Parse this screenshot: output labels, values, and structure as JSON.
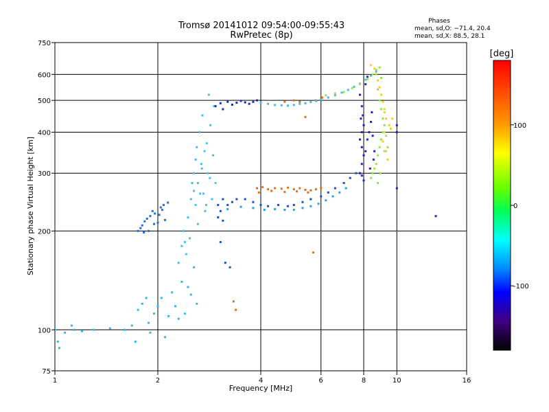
{
  "chart_data": {
    "type": "scatter",
    "title": "Tromsø 20141012 09:54:00-09:55:43",
    "subtitle": "RwPretec (8p)",
    "xlabel": "Frequency [MHz]",
    "ylabel": "Stationary phase Virtual Height [km]",
    "x_scale": "log",
    "y_scale": "log",
    "xlim": [
      1,
      16
    ],
    "ylim": [
      75,
      750
    ],
    "x_ticks": [
      1,
      2,
      4,
      6,
      8,
      10,
      16
    ],
    "y_ticks": [
      75,
      100,
      200,
      300,
      400,
      500,
      600,
      750
    ],
    "grid": true,
    "stats": {
      "heading": "Phases",
      "line_o": "mean, sd,O: −71.4, 20.4",
      "line_x": "mean, sd,X:  88.5, 28.1"
    },
    "colorbar": {
      "label": "[deg]",
      "min": -180,
      "max": 180,
      "ticks": [
        100,
        0,
        -100
      ],
      "colormap": "rainbow",
      "colors": [
        "#ff0000",
        "#ffff00",
        "#00ff00",
        "#00ffff",
        "#0000ff",
        "#000000"
      ]
    },
    "series": [
      {
        "color": "#30b8e8",
        "points": [
          [
            1.0,
            100
          ],
          [
            1.02,
            92
          ],
          [
            1.03,
            88
          ],
          [
            1.07,
            98
          ],
          [
            1.12,
            103
          ],
          [
            1.14,
            100
          ],
          [
            1.2,
            99
          ],
          [
            1.3,
            100
          ],
          [
            1.45,
            101
          ],
          [
            1.6,
            100
          ],
          [
            1.68,
            103
          ],
          [
            1.72,
            92
          ],
          [
            1.75,
            115
          ],
          [
            1.8,
            120
          ],
          [
            1.85,
            125
          ],
          [
            1.88,
            105
          ],
          [
            1.9,
            98
          ],
          [
            1.95,
            112
          ],
          [
            2.0,
            118
          ],
          [
            2.05,
            125
          ],
          [
            2.1,
            95
          ],
          [
            2.15,
            110
          ],
          [
            2.2,
            130
          ],
          [
            2.25,
            118
          ],
          [
            2.3,
            108
          ],
          [
            2.35,
            140
          ],
          [
            2.4,
            112
          ],
          [
            2.45,
            135
          ],
          [
            2.5,
            128
          ],
          [
            2.55,
            155
          ],
          [
            2.6,
            120
          ]
        ]
      },
      {
        "color": "#2070e0",
        "points": [
          [
            1.75,
            200
          ],
          [
            1.78,
            204
          ],
          [
            1.8,
            208
          ],
          [
            1.83,
            214
          ],
          [
            1.86,
            218
          ],
          [
            1.9,
            222
          ],
          [
            1.93,
            230
          ],
          [
            1.96,
            226
          ],
          [
            2.0,
            212
          ],
          [
            2.04,
            236
          ],
          [
            2.08,
            240
          ],
          [
            2.1,
            216
          ],
          [
            2.14,
            244
          ],
          [
            1.82,
            198
          ],
          [
            1.95,
            210
          ],
          [
            2.02,
            224
          ],
          [
            1.88,
            200
          ],
          [
            2.06,
            232
          ]
        ]
      },
      {
        "color": "#40c0f0",
        "points": [
          [
            2.3,
            160
          ],
          [
            2.35,
            180
          ],
          [
            2.38,
            200
          ],
          [
            2.42,
            170
          ],
          [
            2.45,
            220
          ],
          [
            2.48,
            190
          ],
          [
            2.5,
            250
          ],
          [
            2.52,
            280
          ],
          [
            2.55,
            300
          ],
          [
            2.58,
            330
          ],
          [
            2.6,
            360
          ],
          [
            2.62,
            280
          ],
          [
            2.65,
            400
          ],
          [
            2.68,
            320
          ],
          [
            2.7,
            450
          ],
          [
            2.72,
            260
          ],
          [
            2.75,
            230
          ],
          [
            2.78,
            370
          ],
          [
            2.8,
            300
          ],
          [
            2.82,
            520
          ],
          [
            2.85,
            420
          ],
          [
            2.88,
            250
          ],
          [
            2.9,
            340
          ],
          [
            2.92,
            480
          ],
          [
            2.95,
            280
          ],
          [
            2.58,
            240
          ],
          [
            2.62,
            210
          ],
          [
            2.66,
            260
          ],
          [
            2.74,
            350
          ],
          [
            2.84,
            290
          ],
          [
            2.4,
            185
          ],
          [
            2.55,
            265
          ],
          [
            2.69,
            310
          ],
          [
            2.77,
            240
          ]
        ]
      },
      {
        "color": "#1850d0",
        "points": [
          [
            3.0,
            220
          ],
          [
            3.0,
            240
          ],
          [
            3.05,
            230
          ],
          [
            3.1,
            250
          ],
          [
            3.1,
            215
          ],
          [
            3.2,
            240
          ],
          [
            3.3,
            245
          ],
          [
            3.4,
            250
          ],
          [
            3.6,
            250
          ],
          [
            3.8,
            245
          ],
          [
            4.0,
            240
          ],
          [
            4.2,
            238
          ],
          [
            4.5,
            240
          ],
          [
            4.8,
            238
          ],
          [
            5.0,
            240
          ],
          [
            5.3,
            245
          ],
          [
            5.6,
            250
          ],
          [
            6.0,
            255
          ],
          [
            6.3,
            262
          ],
          [
            6.6,
            270
          ],
          [
            7.0,
            280
          ],
          [
            7.3,
            290
          ],
          [
            7.6,
            300
          ],
          [
            3.05,
            185
          ],
          [
            3.15,
            160
          ],
          [
            3.25,
            155
          ]
        ]
      },
      {
        "color": "#20a0e8",
        "points": [
          [
            3.2,
            233
          ],
          [
            3.5,
            237
          ],
          [
            3.8,
            235
          ],
          [
            4.1,
            232
          ],
          [
            4.4,
            233
          ],
          [
            4.7,
            232
          ],
          [
            5.0,
            232
          ],
          [
            5.3,
            235
          ],
          [
            5.6,
            238
          ],
          [
            5.9,
            242
          ],
          [
            6.2,
            248
          ],
          [
            6.5,
            255
          ],
          [
            6.8,
            262
          ],
          [
            7.1,
            270
          ]
        ]
      },
      {
        "color": "#e07010",
        "points": [
          [
            3.9,
            270
          ],
          [
            4.05,
            272
          ],
          [
            4.2,
            268
          ],
          [
            4.4,
            270
          ],
          [
            4.6,
            269
          ],
          [
            4.8,
            271
          ],
          [
            5.0,
            268
          ],
          [
            5.2,
            270
          ],
          [
            5.4,
            267
          ],
          [
            5.6,
            266
          ],
          [
            5.8,
            268
          ],
          [
            6.0,
            270
          ],
          [
            3.95,
            262
          ],
          [
            4.3,
            265
          ],
          [
            4.7,
            263
          ],
          [
            5.1,
            264
          ],
          [
            5.5,
            262
          ],
          [
            3.33,
            122
          ],
          [
            3.38,
            115
          ],
          [
            4.7,
            495
          ],
          [
            5.0,
            500
          ],
          [
            5.2,
            495
          ],
          [
            5.4,
            445
          ],
          [
            5.8,
            500
          ],
          [
            6.05,
            510
          ],
          [
            5.7,
            172
          ]
        ]
      },
      {
        "color": "#1030c0",
        "points": [
          [
            2.95,
            480
          ],
          [
            3.05,
            490
          ],
          [
            3.2,
            495
          ],
          [
            3.4,
            492
          ],
          [
            3.6,
            493
          ],
          [
            3.8,
            495
          ],
          [
            4.0,
            492
          ],
          [
            3.3,
            485
          ],
          [
            3.5,
            498
          ],
          [
            3.7,
            488
          ],
          [
            3.1,
            470
          ],
          [
            3.9,
            500
          ]
        ]
      },
      {
        "color": "#40b8f0",
        "points": [
          [
            4.0,
            492
          ],
          [
            4.2,
            488
          ],
          [
            4.4,
            484
          ],
          [
            4.6,
            483
          ],
          [
            4.8,
            482
          ],
          [
            5.0,
            484
          ],
          [
            5.2,
            488
          ],
          [
            5.4,
            490
          ],
          [
            5.6,
            494
          ],
          [
            5.8,
            498
          ],
          [
            6.0,
            503
          ],
          [
            6.3,
            510
          ],
          [
            6.6,
            518
          ],
          [
            6.9,
            528
          ],
          [
            7.2,
            538
          ],
          [
            7.5,
            550
          ],
          [
            7.8,
            562
          ],
          [
            8.1,
            578
          ],
          [
            8.4,
            595
          ],
          [
            8.7,
            612
          ]
        ]
      },
      {
        "color": "#90e840",
        "points": [
          [
            6.2,
            518
          ],
          [
            6.6,
            525
          ],
          [
            7.0,
            530
          ],
          [
            7.4,
            545
          ],
          [
            7.8,
            560
          ],
          [
            8.2,
            580
          ],
          [
            8.5,
            600
          ],
          [
            8.7,
            620
          ],
          [
            8.9,
            630
          ],
          [
            9.0,
            585
          ],
          [
            8.8,
            540
          ],
          [
            8.9,
            500
          ],
          [
            9.0,
            470
          ],
          [
            9.1,
            440
          ],
          [
            9.2,
            420
          ],
          [
            9.1,
            400
          ],
          [
            9.0,
            380
          ],
          [
            8.9,
            360
          ],
          [
            8.8,
            340
          ],
          [
            8.7,
            320
          ],
          [
            8.6,
            310
          ],
          [
            8.5,
            300
          ],
          [
            8.4,
            290
          ],
          [
            9.3,
            390
          ],
          [
            9.4,
            360
          ],
          [
            9.2,
            350
          ],
          [
            8.8,
            280
          ],
          [
            8.95,
            300
          ]
        ]
      },
      {
        "color": "#f0d020",
        "points": [
          [
            8.4,
            640
          ],
          [
            8.6,
            625
          ],
          [
            8.7,
            600
          ],
          [
            8.8,
            575
          ],
          [
            8.9,
            548
          ],
          [
            9.0,
            520
          ],
          [
            9.1,
            495
          ],
          [
            9.2,
            470
          ],
          [
            9.3,
            440
          ],
          [
            9.2,
            400
          ],
          [
            9.1,
            375
          ],
          [
            9.3,
            350
          ],
          [
            9.4,
            330
          ],
          [
            9.2,
            460
          ],
          [
            9.5,
            420
          ],
          [
            9.6,
            410
          ],
          [
            9.7,
            440
          ]
        ]
      },
      {
        "color": "#2020c8",
        "points": [
          [
            7.8,
            520
          ],
          [
            7.9,
            480
          ],
          [
            7.95,
            450
          ],
          [
            8.0,
            420
          ],
          [
            7.9,
            400
          ],
          [
            7.8,
            380
          ],
          [
            7.9,
            360
          ],
          [
            8.0,
            340
          ],
          [
            7.9,
            320
          ],
          [
            7.8,
            300
          ],
          [
            7.9,
            295
          ],
          [
            8.0,
            285
          ],
          [
            8.1,
            350
          ],
          [
            8.2,
            380
          ],
          [
            8.3,
            400
          ],
          [
            8.4,
            430
          ],
          [
            8.5,
            390
          ],
          [
            8.6,
            350
          ],
          [
            8.45,
            460
          ],
          [
            8.55,
            330
          ],
          [
            8.2,
            590
          ],
          [
            8.1,
            560
          ],
          [
            7.85,
            440
          ],
          [
            8.35,
            310
          ],
          [
            10.0,
            420
          ],
          [
            10.0,
            400
          ],
          [
            10.0,
            270
          ],
          [
            13.0,
            222
          ]
        ]
      }
    ]
  }
}
